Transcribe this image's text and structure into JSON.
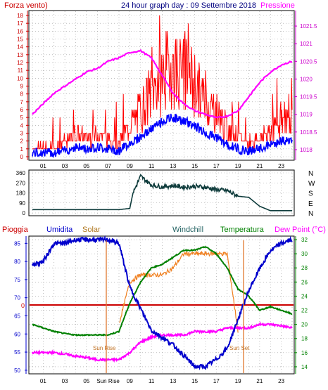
{
  "panel1": {
    "title": "24 hour graph day : 09 Settembre 2018",
    "left_label": "Forza vento)",
    "right_label": "Pressione",
    "left_ticks": [
      "0",
      "1",
      "2",
      "3",
      "4",
      "5",
      "6",
      "7",
      "8",
      "9",
      "10",
      "11",
      "12",
      "13",
      "14",
      "15",
      "16",
      "17",
      "18"
    ],
    "right_ticks": [
      "1018",
      "1018.5",
      "1019",
      "1019.5",
      "1020",
      "1020.5",
      "1021",
      "1021.5"
    ],
    "colors": {
      "wind_gust": "#ff0000",
      "wind_avg": "#0000ff",
      "pressure": "#ff00ff",
      "axis_left": "#cc0000",
      "axis_right": "#cc00cc"
    }
  },
  "panel2": {
    "left_ticks": [
      "0",
      "90",
      "180",
      "270",
      "360"
    ],
    "compass": [
      "N",
      "W",
      "S",
      "E",
      "N"
    ],
    "color": "#0f3c3c"
  },
  "panel3": {
    "labels": {
      "rain": "Pioggia",
      "humidity": "Umidita",
      "solar": "Solar",
      "windchill": "Windchill",
      "temperature": "Temperatura",
      "dewpoint": "Dew Point (°C)"
    },
    "left_ticks": [
      "50",
      "55",
      "60",
      "65",
      "70",
      "75",
      "80",
      "85"
    ],
    "right_ticks": [
      "14",
      "16",
      "18",
      "20",
      "22",
      "24",
      "26",
      "28",
      "30",
      "32"
    ],
    "rain_zero": "0",
    "sunrise_label": "Sun Rise",
    "sunset_label": "Sun Set",
    "colors": {
      "rain": "#cc0000",
      "humidity": "#0000cc",
      "solar": "#f08020",
      "temperature": "#008000",
      "dewpoint": "#ff00ff",
      "sun_lines": "#e07830"
    }
  },
  "x_ticks": [
    "01",
    "03",
    "05",
    "07",
    "09",
    "11",
    "13",
    "15",
    "17",
    "19",
    "21",
    "23"
  ],
  "x_ticks_bottom": [
    "01",
    "03",
    "05",
    "Sun Rise",
    "09",
    "11",
    "13",
    "15",
    "17",
    "19",
    "21",
    "23"
  ],
  "chart_data": [
    {
      "type": "line",
      "title": "24 hour graph day : 09 Settembre 2018",
      "x": [
        0,
        1,
        2,
        3,
        4,
        5,
        6,
        7,
        8,
        9,
        10,
        11,
        12,
        13,
        14,
        15,
        16,
        17,
        18,
        19,
        20,
        21,
        22,
        23,
        24
      ],
      "ylim_left": [
        0,
        18
      ],
      "ylim_right": [
        1017.8,
        1021.8
      ],
      "series": [
        {
          "name": "Forza vento)",
          "axis": "left",
          "values": [
            1,
            1,
            1,
            1.5,
            2.5,
            2,
            2.5,
            2,
            1.5,
            3.5,
            5,
            7,
            9,
            10,
            9,
            8,
            6,
            5,
            3,
            2,
            1.5,
            2,
            3,
            4,
            4
          ]
        },
        {
          "name": "Pressione",
          "axis": "right",
          "values": [
            1019.0,
            1019.3,
            1019.6,
            1019.8,
            1020.0,
            1020.2,
            1020.3,
            1020.5,
            1020.6,
            1020.75,
            1020.8,
            1020.6,
            1020.1,
            1019.6,
            1019.3,
            1019.1,
            1019.0,
            1018.9,
            1018.95,
            1019.1,
            1019.5,
            1019.9,
            1020.2,
            1020.4,
            1020.5
          ]
        }
      ]
    },
    {
      "type": "line",
      "x": [
        0,
        1,
        2,
        3,
        4,
        5,
        6,
        7,
        8,
        9,
        9.3,
        10,
        11,
        12,
        13,
        14,
        15,
        16,
        17,
        18,
        19,
        20,
        21,
        22,
        23,
        24
      ],
      "ylim": [
        0,
        360
      ],
      "series": [
        {
          "values": [
            30,
            30,
            30,
            30,
            30,
            30,
            30,
            30,
            30,
            40,
            180,
            330,
            250,
            235,
            245,
            230,
            240,
            230,
            210,
            200,
            150,
            140,
            60,
            20,
            20,
            20
          ]
        }
      ]
    },
    {
      "type": "line",
      "x": [
        0,
        1,
        2,
        3,
        4,
        5,
        6,
        7,
        8,
        9,
        10,
        11,
        12,
        13,
        14,
        15,
        16,
        17,
        18,
        19,
        20,
        21,
        22,
        23,
        24
      ],
      "ylim_left": [
        49,
        87
      ],
      "ylim_right": [
        13,
        32.5
      ],
      "series": [
        {
          "name": "Umidita",
          "axis": "left",
          "values": [
            79,
            80,
            85,
            85,
            86,
            86,
            86,
            86,
            85,
            73,
            67,
            61,
            59,
            57,
            54,
            51,
            51,
            53,
            56,
            64,
            72,
            78,
            83,
            85,
            86
          ]
        },
        {
          "name": "Temperatura",
          "axis": "right",
          "values": [
            20,
            19.5,
            19,
            18.7,
            18.5,
            18.5,
            18.5,
            18.5,
            19,
            23,
            26,
            28,
            28.5,
            29.5,
            30.5,
            30.5,
            31,
            30,
            28,
            25,
            24,
            22,
            22.5,
            22,
            21.5
          ]
        },
        {
          "name": "Dew Point (°C)",
          "axis": "right",
          "values": [
            16,
            16,
            16,
            15.8,
            15.5,
            15.3,
            15,
            15,
            15,
            16,
            17.5,
            18.2,
            18.5,
            18.5,
            18.5,
            19,
            19,
            19,
            19.5,
            19.5,
            19.5,
            20,
            20,
            19.8,
            19.5
          ]
        },
        {
          "name": "Solar",
          "axis": "right",
          "values": [
            null,
            null,
            null,
            null,
            null,
            null,
            null,
            null,
            20,
            26,
            27,
            27,
            27,
            28,
            30,
            30,
            30,
            30,
            30,
            19,
            null,
            null,
            null,
            null,
            null
          ]
        },
        {
          "name": "Pioggia",
          "axis": "left",
          "values": [
            0,
            0,
            0,
            0,
            0,
            0,
            0,
            0,
            0,
            0,
            0,
            0,
            0,
            0,
            0,
            0,
            0,
            0,
            0,
            0,
            0,
            0,
            0,
            0,
            0
          ]
        }
      ]
    }
  ]
}
